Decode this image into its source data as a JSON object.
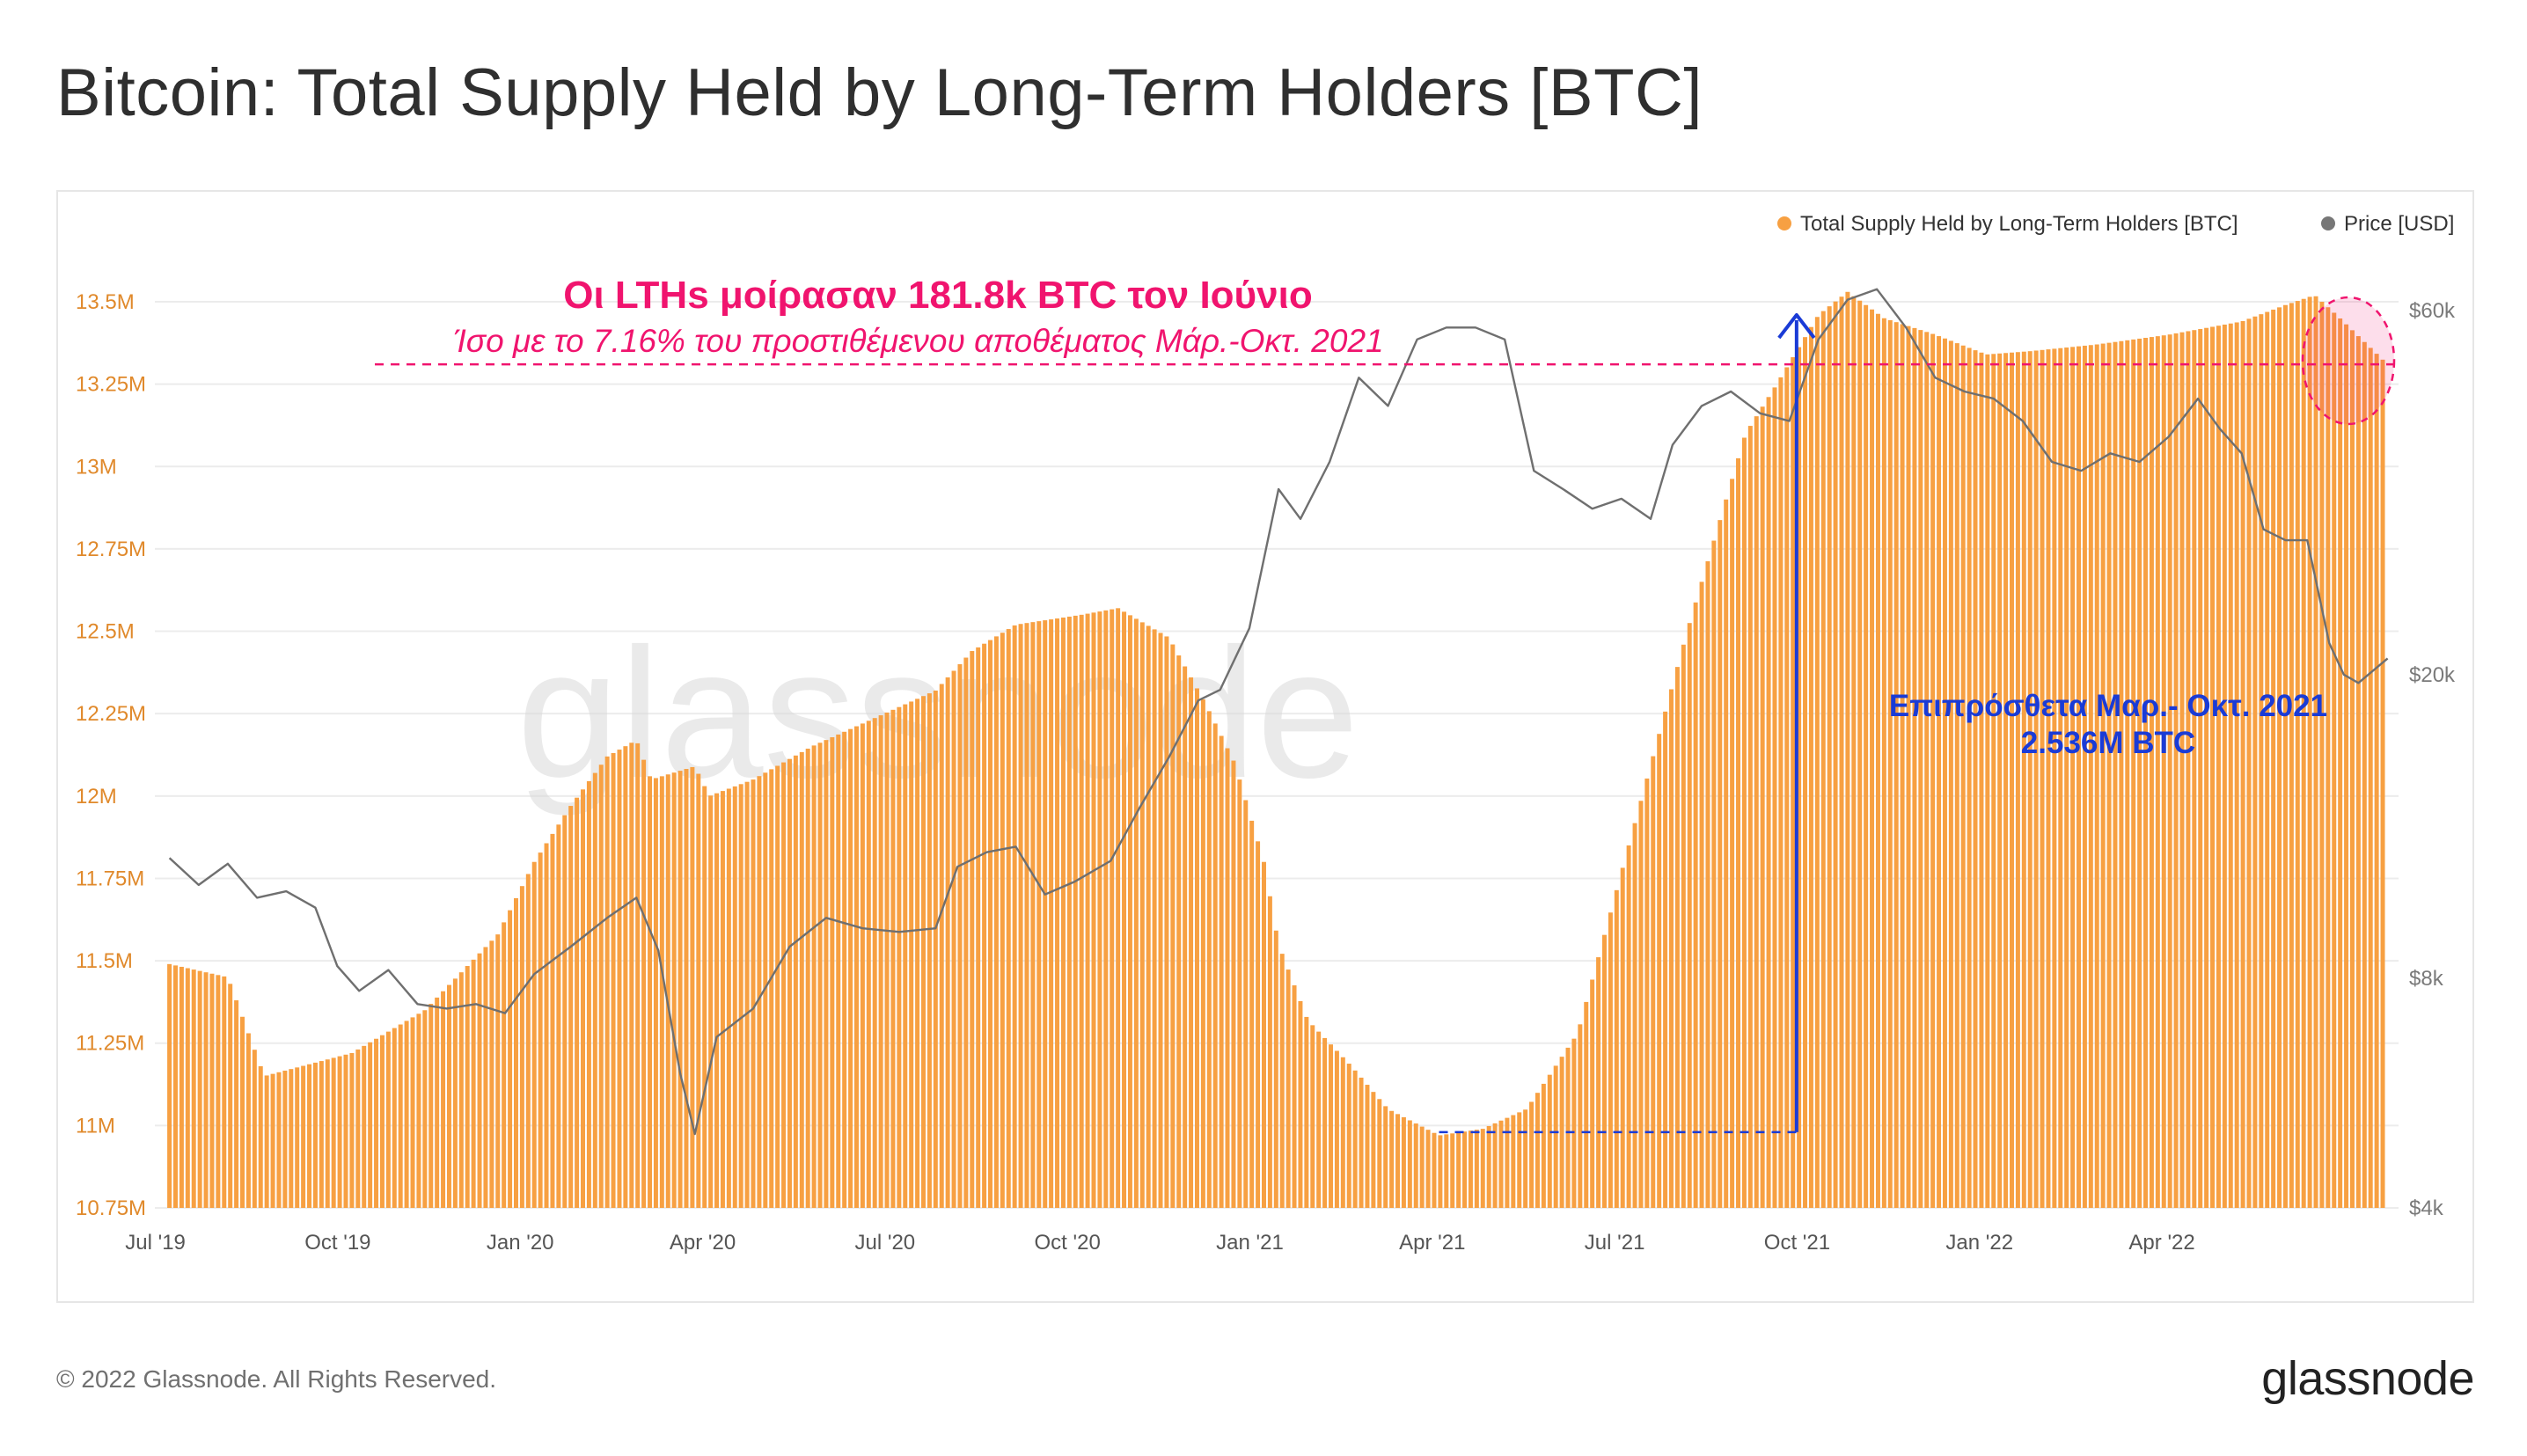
{
  "page": {
    "title": "Bitcoin: Total Supply Held by Long-Term Holders [BTC]",
    "copyright": "© 2022 Glassnode. All Rights Reserved.",
    "logo_text": "glassnode",
    "watermark": "glassnode"
  },
  "chart_data": {
    "type": "bar",
    "title": "Bitcoin: Total Supply Held by Long-Term Holders [BTC]",
    "x_labels": [
      "Jul '19",
      "Oct '19",
      "Jan '20",
      "Apr '20",
      "Jul '20",
      "Oct '20",
      "Jan '21",
      "Apr '21",
      "Jul '21",
      "Oct '21",
      "Jan '22",
      "Apr '22"
    ],
    "y_left": {
      "ticks": [
        "10.75M",
        "11M",
        "11.25M",
        "11.5M",
        "11.75M",
        "12M",
        "12.25M",
        "12.5M",
        "12.75M",
        "13M",
        "13.25M",
        "13.5M"
      ],
      "tick_values": [
        10.75,
        11,
        11.25,
        11.5,
        11.75,
        12,
        12.25,
        12.5,
        12.75,
        13,
        13.25,
        13.5
      ],
      "range": [
        10.75,
        13.5
      ],
      "unit": "M BTC"
    },
    "y_right": {
      "ticks": [
        "$4k",
        "$8k",
        "$20k",
        "$60k"
      ],
      "tick_values": [
        4000,
        8000,
        20000,
        60000
      ],
      "scale": "log",
      "unit": "USD"
    },
    "legend": {
      "position": "top-right",
      "items": [
        {
          "label": "Total Supply Held by Long-Term Holders [BTC]",
          "color": "#f7a042"
        },
        {
          "label": "Price [USD]",
          "color": "#777777"
        }
      ]
    },
    "series": [
      {
        "name": "Total Supply Held by Long-Term Holders [BTC]",
        "type": "bar",
        "color": "#f7a042",
        "unit": "M BTC",
        "points": [
          [
            2019.5,
            11.49
          ],
          [
            2019.58,
            11.45
          ],
          [
            2019.63,
            11.15
          ],
          [
            2019.75,
            11.22
          ],
          [
            2019.85,
            11.35
          ],
          [
            2019.95,
            11.58
          ],
          [
            2020.0,
            11.8
          ],
          [
            2020.05,
            11.97
          ],
          [
            2020.1,
            12.12
          ],
          [
            2020.14,
            12.17
          ],
          [
            2020.16,
            12.05
          ],
          [
            2020.22,
            12.09
          ],
          [
            2020.24,
            12.0
          ],
          [
            2020.3,
            12.05
          ],
          [
            2020.38,
            12.15
          ],
          [
            2020.48,
            12.25
          ],
          [
            2020.55,
            12.32
          ],
          [
            2020.6,
            12.44
          ],
          [
            2020.66,
            12.52
          ],
          [
            2020.75,
            12.55
          ],
          [
            2020.8,
            12.57
          ],
          [
            2020.87,
            12.48
          ],
          [
            2020.92,
            12.28
          ],
          [
            2020.96,
            12.1
          ],
          [
            2021.0,
            11.8
          ],
          [
            2021.02,
            11.55
          ],
          [
            2021.06,
            11.32
          ],
          [
            2021.12,
            11.18
          ],
          [
            2021.17,
            11.05
          ],
          [
            2021.24,
            10.97
          ],
          [
            2021.3,
            10.99
          ],
          [
            2021.36,
            11.05
          ],
          [
            2021.43,
            11.28
          ],
          [
            2021.5,
            11.85
          ],
          [
            2021.58,
            12.5
          ],
          [
            2021.66,
            13.1
          ],
          [
            2021.7,
            13.24
          ],
          [
            2021.76,
            13.46
          ],
          [
            2021.8,
            13.53
          ],
          [
            2021.85,
            13.45
          ],
          [
            2021.92,
            13.4
          ],
          [
            2021.99,
            13.34
          ],
          [
            2022.05,
            13.35
          ],
          [
            2022.14,
            13.37
          ],
          [
            2022.24,
            13.4
          ],
          [
            2022.34,
            13.44
          ],
          [
            2022.4,
            13.49
          ],
          [
            2022.44,
            13.52
          ],
          [
            2022.47,
            13.46
          ],
          [
            2022.54,
            13.31
          ]
        ]
      },
      {
        "name": "Price [USD]",
        "type": "line",
        "color": "#777777",
        "unit": "USD",
        "points": [
          [
            2019.5,
            11500
          ],
          [
            2019.54,
            10600
          ],
          [
            2019.58,
            11300
          ],
          [
            2019.62,
            10200
          ],
          [
            2019.66,
            10400
          ],
          [
            2019.7,
            9900
          ],
          [
            2019.73,
            8300
          ],
          [
            2019.76,
            7700
          ],
          [
            2019.8,
            8200
          ],
          [
            2019.84,
            7400
          ],
          [
            2019.88,
            7300
          ],
          [
            2019.92,
            7400
          ],
          [
            2019.96,
            7200
          ],
          [
            2020.0,
            8100
          ],
          [
            2020.05,
            8800
          ],
          [
            2020.1,
            9600
          ],
          [
            2020.14,
            10200
          ],
          [
            2020.17,
            8700
          ],
          [
            2020.2,
            6000
          ],
          [
            2020.22,
            5000
          ],
          [
            2020.25,
            6700
          ],
          [
            2020.3,
            7300
          ],
          [
            2020.35,
            8800
          ],
          [
            2020.4,
            9600
          ],
          [
            2020.45,
            9300
          ],
          [
            2020.5,
            9200
          ],
          [
            2020.55,
            9300
          ],
          [
            2020.58,
            11200
          ],
          [
            2020.62,
            11700
          ],
          [
            2020.66,
            11900
          ],
          [
            2020.7,
            10300
          ],
          [
            2020.74,
            10700
          ],
          [
            2020.79,
            11400
          ],
          [
            2020.83,
            13400
          ],
          [
            2020.87,
            15600
          ],
          [
            2020.91,
            18500
          ],
          [
            2020.94,
            19100
          ],
          [
            2020.98,
            23000
          ],
          [
            2021.02,
            35000
          ],
          [
            2021.05,
            32000
          ],
          [
            2021.09,
            38000
          ],
          [
            2021.13,
            49000
          ],
          [
            2021.17,
            45000
          ],
          [
            2021.21,
            55000
          ],
          [
            2021.25,
            57000
          ],
          [
            2021.29,
            57000
          ],
          [
            2021.33,
            55000
          ],
          [
            2021.37,
            37000
          ],
          [
            2021.41,
            35000
          ],
          [
            2021.45,
            33000
          ],
          [
            2021.49,
            34000
          ],
          [
            2021.53,
            32000
          ],
          [
            2021.56,
            40000
          ],
          [
            2021.6,
            45000
          ],
          [
            2021.64,
            47000
          ],
          [
            2021.68,
            44000
          ],
          [
            2021.72,
            43000
          ],
          [
            2021.76,
            55000
          ],
          [
            2021.8,
            62000
          ],
          [
            2021.84,
            64000
          ],
          [
            2021.88,
            57000
          ],
          [
            2021.92,
            49000
          ],
          [
            2021.96,
            47000
          ],
          [
            2022.0,
            46000
          ],
          [
            2022.04,
            43000
          ],
          [
            2022.08,
            38000
          ],
          [
            2022.12,
            37000
          ],
          [
            2022.16,
            39000
          ],
          [
            2022.2,
            38000
          ],
          [
            2022.24,
            41000
          ],
          [
            2022.28,
            46000
          ],
          [
            2022.31,
            42000
          ],
          [
            2022.34,
            39000
          ],
          [
            2022.37,
            31000
          ],
          [
            2022.4,
            30000
          ],
          [
            2022.43,
            30000
          ],
          [
            2022.46,
            22000
          ],
          [
            2022.48,
            20000
          ],
          [
            2022.5,
            19500
          ],
          [
            2022.54,
            21000
          ]
        ]
      }
    ],
    "annotations": {
      "headline": "Οι LTHs μοίρασαν 181.8k BTC τον Ιούνιο",
      "subline": "Ίσο με το 7.16% του προστιθέμενου αποθέματος Μάρ.-Οκτ. 2021",
      "accumulation_line1": "Επιπρόσθετα Μαρ.- Οκτ. 2021",
      "accumulation_line2": "2.536M BTC",
      "headline_color": "#f0146e",
      "accumulation_color": "#1a3bd6",
      "reference_level_M": 13.31,
      "baseline_level_M": 10.98,
      "accumulation_start_x": 2021.24,
      "accumulation_end_x": 2021.73
    }
  }
}
